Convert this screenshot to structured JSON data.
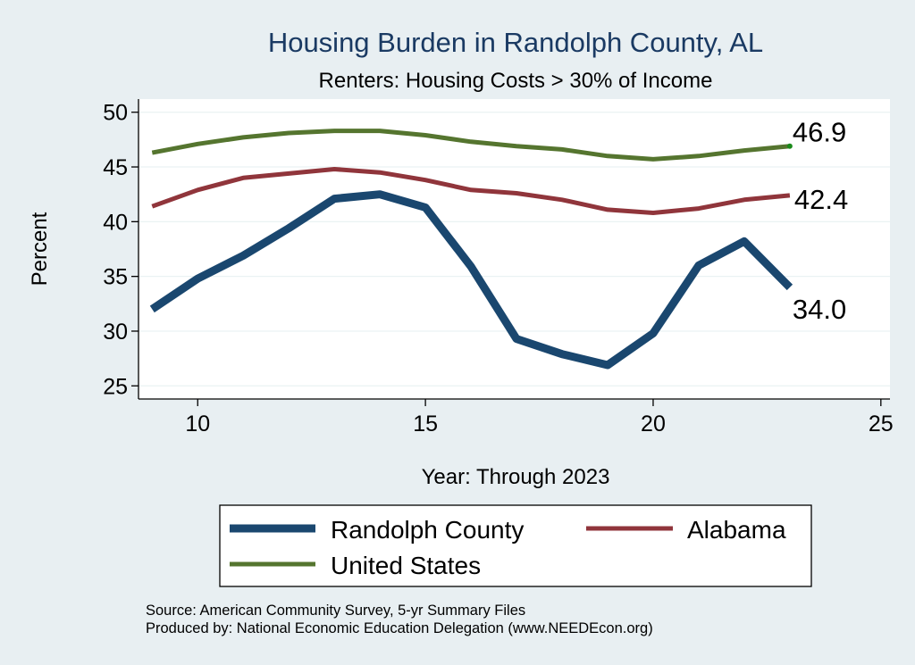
{
  "chart_data": {
    "type": "line",
    "title": "Housing Burden in Randolph County, AL",
    "subtitle": "Renters: Housing Costs > 30% of Income",
    "xlabel": "Year: Through 2023",
    "ylabel": "Percent",
    "xlim": [
      8.7,
      25.2
    ],
    "ylim": [
      23.8,
      51.2
    ],
    "xticks": [
      10,
      15,
      20,
      25
    ],
    "yticks": [
      25,
      30,
      35,
      40,
      45,
      50
    ],
    "grid": true,
    "series": [
      {
        "name": "Randolph County",
        "color": "#1a476f",
        "line_width": 9,
        "x": [
          9,
          10,
          11,
          12,
          13,
          14,
          15,
          16,
          17,
          18,
          19,
          20,
          21,
          22,
          23
        ],
        "y": [
          32.0,
          34.8,
          36.9,
          39.4,
          42.1,
          42.5,
          41.3,
          35.9,
          29.3,
          27.9,
          26.9,
          29.8,
          36.0,
          38.2,
          34.0
        ],
        "end_label": "34.0"
      },
      {
        "name": "Alabama",
        "color": "#90353b",
        "line_width": 5,
        "x": [
          9,
          10,
          11,
          12,
          13,
          14,
          15,
          16,
          17,
          18,
          19,
          20,
          21,
          22,
          23
        ],
        "y": [
          41.4,
          42.9,
          44.0,
          44.4,
          44.8,
          44.5,
          43.8,
          42.9,
          42.6,
          42.0,
          41.1,
          40.8,
          41.2,
          42.0,
          42.4
        ],
        "end_label": "42.4"
      },
      {
        "name": "United States",
        "color": "#55752f",
        "line_width": 5,
        "x": [
          9,
          10,
          11,
          12,
          13,
          14,
          15,
          16,
          17,
          18,
          19,
          20,
          21,
          22,
          23
        ],
        "y": [
          46.3,
          47.1,
          47.7,
          48.1,
          48.3,
          48.3,
          47.9,
          47.3,
          46.9,
          46.6,
          46.0,
          45.7,
          46.0,
          46.5,
          46.9
        ],
        "end_label": "46.9"
      }
    ]
  },
  "legend": {
    "items": [
      "Randolph County",
      "Alabama",
      "United States"
    ]
  },
  "footer": {
    "source": "Source: American Community Survey, 5-yr Summary Files",
    "produced_by": "Produced by: National Economic Education Delegation (www.NEEDEcon.org)"
  }
}
